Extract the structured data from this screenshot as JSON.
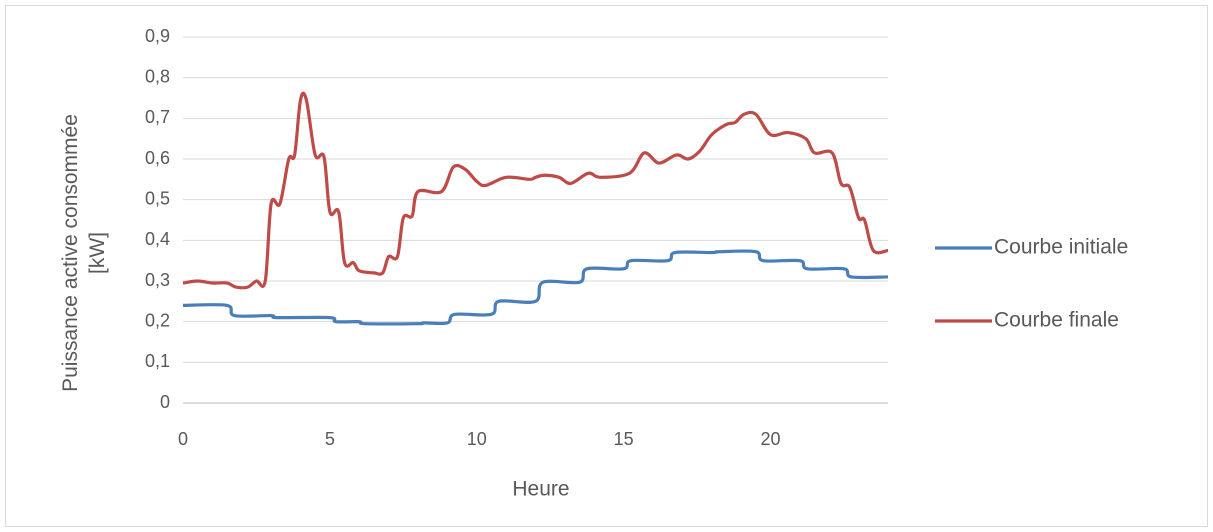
{
  "chart_data": {
    "type": "line",
    "xlabel": "Heure",
    "ylabel": "Puissance active consommée [kW]",
    "xlim": [
      0,
      24
    ],
    "xticks": [
      0,
      5,
      10,
      15,
      20
    ],
    "ylim": [
      0,
      0.9
    ],
    "yticks": [
      0,
      {
        "value": 0.1,
        "label": "0,1"
      },
      {
        "value": 0.2,
        "label": "0,2"
      },
      {
        "value": 0.3,
        "label": "0,3"
      },
      {
        "value": 0.4,
        "label": "0,4"
      },
      {
        "value": 0.5,
        "label": "0,5"
      },
      {
        "value": 0.6,
        "label": "0,6"
      },
      {
        "value": 0.7,
        "label": "0,7"
      },
      {
        "value": 0.8,
        "label": "0,8"
      },
      {
        "value": 0.9,
        "label": "0,9"
      }
    ],
    "grid": true,
    "legend": "right",
    "series": [
      {
        "name": "Courbe initiale",
        "color": "#4a7ebb",
        "x": [
          0,
          1.5,
          1.75,
          3,
          3.2,
          5,
          5.2,
          6,
          6.2,
          8,
          8.2,
          9,
          9.25,
          10.5,
          10.75,
          12,
          12.25,
          13.5,
          13.75,
          15,
          15.25,
          16.5,
          16.75,
          18,
          18.25,
          19.5,
          19.75,
          21,
          21.25,
          22.5,
          22.75,
          24
        ],
        "values": [
          0.24,
          0.24,
          0.215,
          0.215,
          0.21,
          0.21,
          0.2,
          0.2,
          0.195,
          0.195,
          0.197,
          0.197,
          0.218,
          0.218,
          0.25,
          0.25,
          0.297,
          0.297,
          0.33,
          0.33,
          0.35,
          0.35,
          0.37,
          0.37,
          0.372,
          0.372,
          0.35,
          0.35,
          0.33,
          0.33,
          0.31,
          0.31
        ]
      },
      {
        "name": "Courbe finale",
        "color": "#be4b48",
        "x": [
          0,
          0.5,
          1,
          1.5,
          1.8,
          2.2,
          2.5,
          2.8,
          3.0,
          3.3,
          3.6,
          3.8,
          4.0,
          4.2,
          4.5,
          4.8,
          5.0,
          5.3,
          5.5,
          5.8,
          6.0,
          6.5,
          6.8,
          7.0,
          7.3,
          7.5,
          7.8,
          8.0,
          8.8,
          9.2,
          9.6,
          10.0,
          10.3,
          11.0,
          11.8,
          12.0,
          12.3,
          12.8,
          13.2,
          13.8,
          14.2,
          15.2,
          15.7,
          16.2,
          16.8,
          17.2,
          17.6,
          18.0,
          18.5,
          18.8,
          19.1,
          19.5,
          20.0,
          20.6,
          21.2,
          21.5,
          22.1,
          22.4,
          22.7,
          23.0,
          23.2,
          23.5,
          24
        ],
        "values": [
          0.295,
          0.3,
          0.295,
          0.295,
          0.285,
          0.285,
          0.3,
          0.3,
          0.49,
          0.49,
          0.6,
          0.61,
          0.745,
          0.745,
          0.61,
          0.605,
          0.47,
          0.47,
          0.345,
          0.345,
          0.325,
          0.32,
          0.32,
          0.36,
          0.36,
          0.455,
          0.46,
          0.52,
          0.52,
          0.58,
          0.575,
          0.545,
          0.535,
          0.555,
          0.55,
          0.555,
          0.56,
          0.555,
          0.54,
          0.565,
          0.555,
          0.565,
          0.615,
          0.59,
          0.61,
          0.6,
          0.62,
          0.66,
          0.685,
          0.69,
          0.71,
          0.71,
          0.66,
          0.665,
          0.65,
          0.615,
          0.615,
          0.54,
          0.53,
          0.455,
          0.45,
          0.375,
          0.375
        ]
      }
    ]
  }
}
